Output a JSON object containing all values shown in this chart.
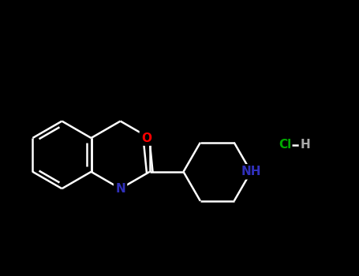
{
  "background_color": "#000000",
  "bond_color": "#ffffff",
  "atom_colors": {
    "O": "#ff0000",
    "N_iso": "#3030bb",
    "N_pip": "#3030bb",
    "Cl": "#00aa00",
    "H_color": "#aaaaaa"
  },
  "line_width": 1.8,
  "font_size_atom": 11,
  "figsize": [
    4.55,
    3.5
  ],
  "dpi": 100,
  "xlim": [
    -1.0,
    9.5
  ],
  "ylim": [
    -1.5,
    5.5
  ]
}
